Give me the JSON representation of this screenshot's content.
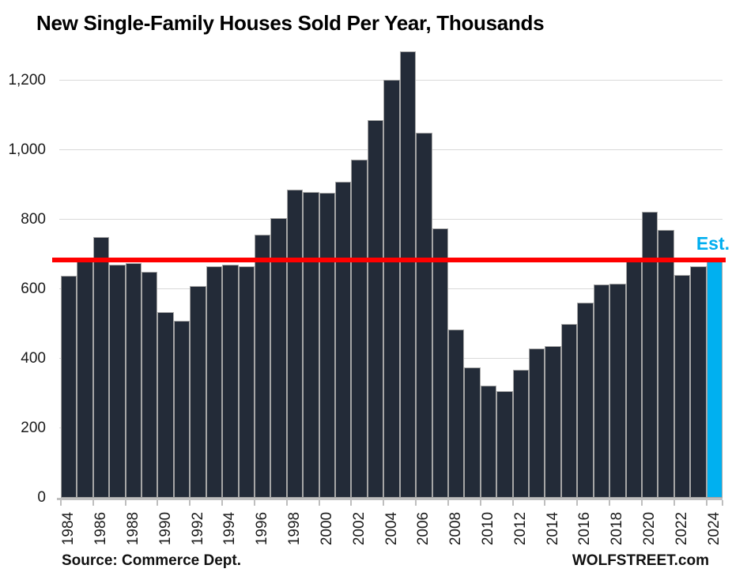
{
  "title": "New Single-Family Houses Sold Per Year, Thousands",
  "annotations": {
    "est_label": "Est."
  },
  "footer": {
    "source": "Source: Commerce Dept.",
    "branding": "WOLFSTREET.com"
  },
  "colors": {
    "bar": "#232B38",
    "bar_highlight": "#00B0F0",
    "bar_border": "#A6A6A6",
    "reference_line": "#FF0000",
    "gridline": "#D9D9D9",
    "axis_line": "#BFBFBF",
    "est_text": "#00AEEF",
    "text": "#000000"
  },
  "chart_data": {
    "type": "bar",
    "title": "New Single-Family Houses Sold Per Year, Thousands",
    "categories": [
      1984,
      1985,
      1986,
      1987,
      1988,
      1989,
      1990,
      1991,
      1992,
      1993,
      1994,
      1995,
      1996,
      1997,
      1998,
      1999,
      2000,
      2001,
      2002,
      2003,
      2004,
      2005,
      2006,
      2007,
      2008,
      2009,
      2010,
      2011,
      2012,
      2013,
      2014,
      2015,
      2016,
      2017,
      2018,
      2019,
      2020,
      2021,
      2022,
      2023,
      2024
    ],
    "values": [
      639,
      688,
      750,
      671,
      676,
      650,
      534,
      509,
      610,
      666,
      670,
      667,
      757,
      804,
      886,
      880,
      877,
      908,
      973,
      1086,
      1203,
      1283,
      1051,
      776,
      485,
      375,
      323,
      306,
      368,
      429,
      437,
      501,
      561,
      613,
      617,
      683,
      822,
      771,
      641,
      666,
      685
    ],
    "highlight_category": 2024,
    "highlight_note": "Est.",
    "reference_line_value": 685,
    "xlabel": "",
    "ylabel": "",
    "ylim": [
      0,
      1300
    ],
    "yticks": [
      0,
      200,
      400,
      600,
      800,
      1000,
      1200
    ],
    "ytick_labels": [
      "0",
      "200",
      "400",
      "600",
      "800",
      "1,000",
      "1,200"
    ],
    "xtick_step": 2,
    "grid": true,
    "legend": false
  }
}
